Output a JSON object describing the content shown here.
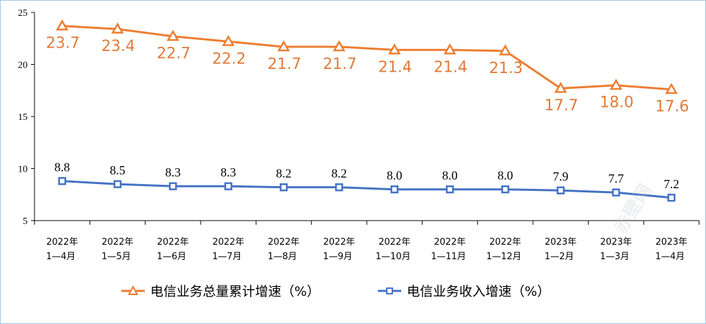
{
  "chart_data": {
    "type": "line",
    "categories": [
      [
        "2022年",
        "1—4月"
      ],
      [
        "2022年",
        "1—5月"
      ],
      [
        "2022年",
        "1—6月"
      ],
      [
        "2022年",
        "1—7月"
      ],
      [
        "2022年",
        "1—8月"
      ],
      [
        "2022年",
        "1—9月"
      ],
      [
        "2022年",
        "1—10月"
      ],
      [
        "2022年",
        "1—11月"
      ],
      [
        "2022年",
        "1—12月"
      ],
      [
        "2023年",
        "1—2月"
      ],
      [
        "2023年",
        "1—3月"
      ],
      [
        "2023年",
        "1—4月"
      ]
    ],
    "series": [
      {
        "name": "电信业务总量累计增速（%）",
        "values": [
          23.7,
          23.4,
          22.7,
          22.2,
          21.7,
          21.7,
          21.4,
          21.4,
          21.3,
          17.7,
          18.0,
          17.6
        ],
        "labels": [
          "23.7",
          "23.4",
          "22.7",
          "22.2",
          "21.7",
          "21.7",
          "21.4",
          "21.4",
          "21.3",
          "17.7",
          "18.0",
          "17.6"
        ],
        "color": "#ed7d31",
        "marker": "triangle"
      },
      {
        "name": "电信业务收入增速（%）",
        "values": [
          8.8,
          8.5,
          8.3,
          8.3,
          8.2,
          8.2,
          8.0,
          8.0,
          8.0,
          7.9,
          7.7,
          7.2
        ],
        "labels": [
          "8.8",
          "8.5",
          "8.3",
          "8.3",
          "8.2",
          "8.2",
          "8.0",
          "8.0",
          "8.0",
          "7.9",
          "7.7",
          "7.2"
        ],
        "color": "#4472c4",
        "marker": "square"
      }
    ],
    "ylim": [
      5,
      25
    ],
    "yticks": [
      "5",
      "10",
      "15",
      "20",
      "25"
    ],
    "grid": false,
    "legend_position": "bottom"
  },
  "watermark": "赤壁网"
}
